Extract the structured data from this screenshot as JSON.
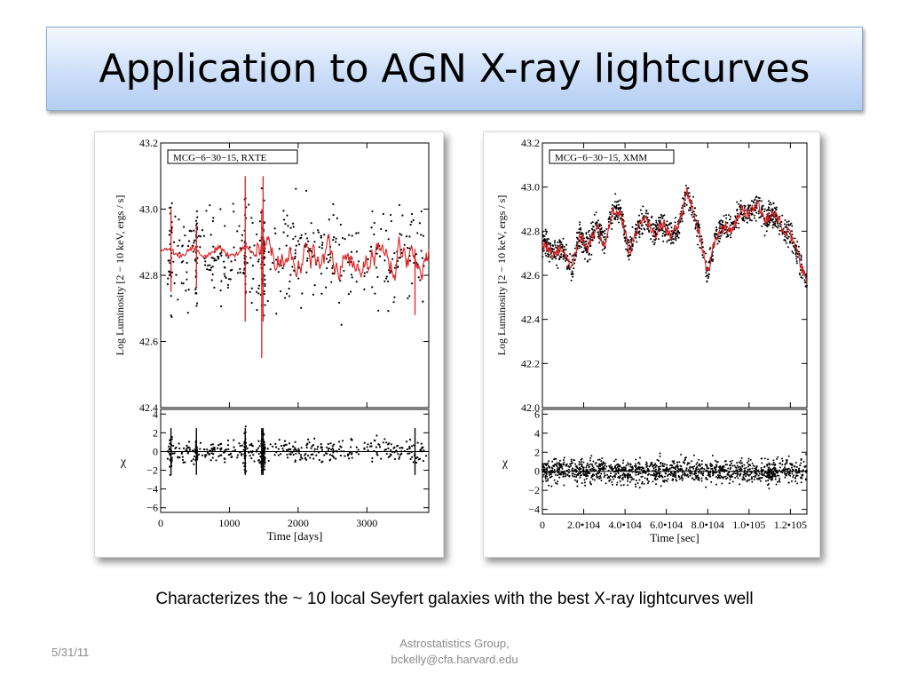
{
  "slide": {
    "title": "Application to AGN X-ray lightcurves",
    "caption": "Characterizes the ~ 10 local Seyfert galaxies with the best X-ray lightcurves well",
    "footer_date": "5/31/11",
    "footer_line1": "Astrostatistics Group,",
    "footer_line2": "bckelly@cfa.harvard.edu"
  },
  "colors": {
    "model_line": "#e02020",
    "points": "#000000",
    "title_gradient_bottom": "#b4cdf3"
  },
  "chart_data": [
    {
      "type": "scatter",
      "legend": "MCG−6−30−15, RXTE",
      "legend_position": "top-left",
      "ylabel_top": "Log Luminosity [2 − 10 keV, ergs / s]",
      "ylabel_bottom": "χ",
      "xlabel": "Time [days]",
      "xlim": [
        0,
        3900
      ],
      "ylim_top": [
        42.4,
        43.2
      ],
      "ylim_bottom": [
        -6.5,
        4.5
      ],
      "xticks": [
        0,
        1000,
        2000,
        3000
      ],
      "xtick_labels": [
        "0",
        "1000",
        "2000",
        "3000"
      ],
      "yticks_top": [
        43.2,
        43.0,
        42.8,
        42.6,
        42.4
      ],
      "ytick_labels_top": [
        "43.2",
        "43.0",
        "42.8",
        "42.6",
        "42.4"
      ],
      "yticks_bottom": [
        4,
        2,
        0,
        -2,
        -4,
        -6
      ],
      "ytick_labels_bottom": [
        "4",
        "2",
        "0",
        "−2",
        "−4",
        "−6"
      ],
      "series": [
        {
          "name": "",
          "kind": "data",
          "color": "#000000",
          "n_points_approx": 900
        },
        {
          "name": "",
          "kind": "model",
          "color": "#e02020",
          "mean": 42.87
        }
      ],
      "spikes": [
        {
          "x": 150,
          "lo": 42.75,
          "hi": 43.0
        },
        {
          "x": 520,
          "lo": 42.76,
          "hi": 42.95
        },
        {
          "x": 1230,
          "lo": 42.66,
          "hi": 43.1
        },
        {
          "x": 1470,
          "lo": 42.55,
          "hi": 43.0
        },
        {
          "x": 1490,
          "lo": 42.66,
          "hi": 43.1
        },
        {
          "x": 3700,
          "lo": 42.68,
          "hi": 42.88
        }
      ],
      "grid": false
    },
    {
      "type": "scatter",
      "legend": "MCG−6−30−15, XMM",
      "legend_position": "top-left",
      "ylabel_top": "Log Luminosity [2 − 10 keV, ergs / s]",
      "ylabel_bottom": "χ",
      "xlabel": "Time [sec]",
      "xlim": [
        0,
        128000
      ],
      "ylim_top": [
        42.0,
        43.2
      ],
      "ylim_bottom": [
        -4.5,
        6.5
      ],
      "xticks": [
        0,
        20000,
        40000,
        60000,
        80000,
        100000,
        120000
      ],
      "xtick_labels": [
        "0",
        "2.0•104",
        "4.0•104",
        "6.0•104",
        "8.0•104",
        "1.0•105",
        "1.2•105"
      ],
      "yticks_top": [
        43.2,
        43.0,
        42.8,
        42.6,
        42.4,
        42.2,
        42.0
      ],
      "ytick_labels_top": [
        "43.2",
        "43.0",
        "42.8",
        "42.6",
        "42.4",
        "42.2",
        "42.0"
      ],
      "yticks_bottom": [
        6,
        4,
        2,
        0,
        -2,
        -4
      ],
      "ytick_labels_bottom": [
        "6",
        "4",
        "2",
        "0",
        "−2",
        "−4"
      ],
      "curve_knots": [
        [
          0,
          42.75
        ],
        [
          5000,
          42.7
        ],
        [
          10000,
          42.72
        ],
        [
          14000,
          42.62
        ],
        [
          18000,
          42.78
        ],
        [
          22000,
          42.72
        ],
        [
          26000,
          42.83
        ],
        [
          30000,
          42.74
        ],
        [
          34000,
          42.9
        ],
        [
          38000,
          42.88
        ],
        [
          42000,
          42.7
        ],
        [
          46000,
          42.82
        ],
        [
          50000,
          42.86
        ],
        [
          54000,
          42.78
        ],
        [
          58000,
          42.84
        ],
        [
          62000,
          42.78
        ],
        [
          66000,
          42.82
        ],
        [
          70000,
          42.98
        ],
        [
          74000,
          42.86
        ],
        [
          78000,
          42.7
        ],
        [
          80000,
          42.6
        ],
        [
          84000,
          42.78
        ],
        [
          88000,
          42.82
        ],
        [
          92000,
          42.8
        ],
        [
          96000,
          42.9
        ],
        [
          100000,
          42.88
        ],
        [
          104000,
          42.92
        ],
        [
          108000,
          42.85
        ],
        [
          112000,
          42.88
        ],
        [
          116000,
          42.82
        ],
        [
          120000,
          42.78
        ],
        [
          124000,
          42.68
        ],
        [
          128000,
          42.56
        ]
      ],
      "series": [
        {
          "name": "",
          "kind": "data",
          "color": "#000000",
          "n_points_approx": 2000
        },
        {
          "name": "",
          "kind": "model",
          "color": "#e02020"
        }
      ],
      "grid": false
    }
  ]
}
